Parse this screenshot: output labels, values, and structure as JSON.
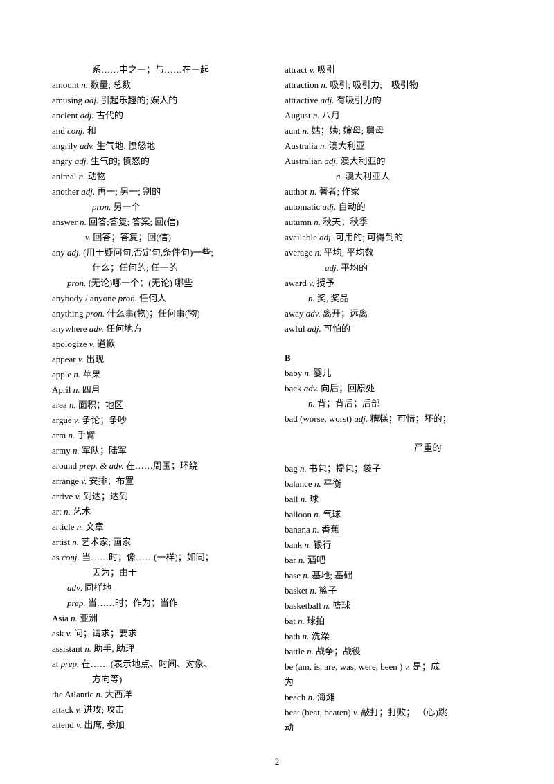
{
  "page_number": "2",
  "left_column": [
    {
      "text": "系……中之一；与……在一起",
      "indent": "indent-2"
    },
    {
      "word": "amount",
      "pos": "n.",
      "def": "数量; 总数"
    },
    {
      "word": "amusing",
      "pos": "adj.",
      "def": "引起乐趣的; 娱人的"
    },
    {
      "word": "ancient",
      "pos": "adj.",
      "def": "古代的"
    },
    {
      "word": "and",
      "pos": "conj.",
      "def": "和"
    },
    {
      "word": "angrily",
      "pos": "adv.",
      "def": "生气地; 愤怒地"
    },
    {
      "word": "angry",
      "pos": "adj.",
      "def": "生气的; 愤怒的"
    },
    {
      "word": "animal",
      "pos": "n.",
      "def": "动物"
    },
    {
      "word": "another",
      "pos": "adj.",
      "def": "再一; 另一; 别的"
    },
    {
      "pos": "pron.",
      "def": "另一个",
      "indent": "indent-2"
    },
    {
      "word": "answer",
      "pos": "n.",
      "def": "回答;答复; 答案; 回(信)"
    },
    {
      "pos": "v.",
      "def": "回答；答复；回(信)",
      "indent": "sub-line"
    },
    {
      "word": "any",
      "pos": "adj.",
      "def": "(用于疑问句,否定句,条件句)一些;"
    },
    {
      "text": "什么；任何的; 任一的",
      "indent": "indent-2"
    },
    {
      "pos": "pron.",
      "def": "(无论)哪一个；(无论) 哪些",
      "indent": "sub-line-3"
    },
    {
      "word": "anybody / anyone ",
      "pos": "pron.",
      "def": "任何人"
    },
    {
      "word": "anything",
      "pos": "pron.",
      "def": "什么事(物)；任何事(物)"
    },
    {
      "word": "anywhere",
      "pos": "adv.",
      "def": "任何地方"
    },
    {
      "word": "apologize",
      "pos": "v.",
      "def": "道歉"
    },
    {
      "word": "appear",
      "pos": "v.",
      "def": "出现"
    },
    {
      "word": "apple",
      "pos": "n.",
      "def": "苹果"
    },
    {
      "word": "April",
      "pos": "n.",
      "def": "四月"
    },
    {
      "word": "area",
      "pos": "n.",
      "def": "面积；地区"
    },
    {
      "word": "argue",
      "pos": "v.",
      "def": "争论；争吵"
    },
    {
      "word": "arm",
      "pos": "n.",
      "def": "手臂"
    },
    {
      "word": "army",
      "pos": "n.",
      "def": "军队；陆军"
    },
    {
      "word": "around",
      "pos": "prep. & adv.",
      "def": "在……周围；环绕"
    },
    {
      "word": "arrange",
      "pos": "v.",
      "def": "安排；布置"
    },
    {
      "word": "arrive",
      "pos": "v.",
      "def": "到达；达到"
    },
    {
      "word": "art",
      "pos": "n.",
      "def": "艺术"
    },
    {
      "word": "article",
      "pos": "n.",
      "def": "文章"
    },
    {
      "word": "artist",
      "pos": "n.",
      "def": "艺术家; 画家"
    },
    {
      "word": "as",
      "pos": "conj.",
      "def": "当……时；像……(一样)；如同；"
    },
    {
      "text": "因为；由于",
      "indent": "indent-2"
    },
    {
      "pos": "adv",
      "def": "同样地",
      "indent": "sub-line-3",
      "suffix": "."
    },
    {
      "pos": "prep.",
      "def": "当……时；作为；当作",
      "indent": "sub-line-3"
    },
    {
      "word": "Asia",
      "pos": "n.",
      "def": "亚洲"
    },
    {
      "word": "ask",
      "pos": "v.",
      "def": "问；请求；要求"
    },
    {
      "word": "assistant  ",
      "pos": "n.",
      "def": "助手, 助理"
    },
    {
      "word": "at",
      "pos": "prep.",
      "def": "在…… (表示地点、时间、对象、"
    },
    {
      "text": "方向等)",
      "indent": "indent-2"
    },
    {
      "word": "the Atlantic",
      "pos": "n.",
      "def": "大西洋"
    },
    {
      "word": "attack",
      "pos": "v.",
      "def": "进攻; 攻击"
    },
    {
      "word": "attend",
      "pos": "v.",
      "def": "出席,  参加"
    }
  ],
  "right_column": [
    {
      "word": "attract",
      "pos": "v.",
      "def": "吸引"
    },
    {
      "word": "attraction",
      "pos": "n.",
      "def": "吸引; 吸引力;　吸引物"
    },
    {
      "word": "attractive",
      "pos": "adj.",
      "def": "有吸引力的"
    },
    {
      "word": "August",
      "pos": "n.",
      "def": "八月"
    },
    {
      "word": "aunt",
      "pos": "n.",
      "def": "姑；姨; 婶母; 舅母"
    },
    {
      "word": "Australia",
      "pos": "n.",
      "def": "澳大利亚"
    },
    {
      "word": "Australian",
      "pos": "adj.",
      "def": "澳大利亚的"
    },
    {
      "pos": "n.",
      "def": "澳大利亚人",
      "indent": "indent-3"
    },
    {
      "word": "author",
      "pos": "n.",
      "def": "著者; 作家"
    },
    {
      "word": "automatic",
      "pos": "adj.",
      "def": "自动的"
    },
    {
      "word": "autumn",
      "pos": "n.",
      "def": "秋天；秋季"
    },
    {
      "word": "available",
      "pos": "adj.",
      "def": "可用的; 可得到的"
    },
    {
      "word": "average  ",
      "pos": "n.",
      "def": "平均; 平均数"
    },
    {
      "pos": "adj.",
      "def": "平均的",
      "indent": "indent-2"
    },
    {
      "word": "award",
      "pos": "v.",
      "def": "授予"
    },
    {
      "pos": "n.",
      "def": "奖, 奖品",
      "indent": "indent-1"
    },
    {
      "word": "away",
      "pos": "adv.",
      "def": "离开；远离"
    },
    {
      "word": "awful",
      "pos": "adj.",
      "def": "可怕的"
    },
    {
      "section": "B"
    },
    {
      "word": "baby",
      "pos": "n.",
      "def": "婴儿"
    },
    {
      "word": "back",
      "pos": "adv.",
      "def": "向后；回原处"
    },
    {
      "pos": "n.",
      "def": "背；背后；后部",
      "indent": "indent-1"
    },
    {
      "word": "bad (worse, worst)",
      "pos": "adj.",
      "def": "糟糕；可惜；坏的；"
    },
    {
      "spacer": true,
      "text": "严重的"
    },
    {
      "word": "bag",
      "pos": "n.",
      "def": "书包；提包；袋子"
    },
    {
      "word": "balance",
      "pos": "n.",
      "def": "平衡"
    },
    {
      "word": "ball",
      "pos": "n.",
      "def": "球"
    },
    {
      "word": "balloon",
      "pos": "n.",
      "def": "气球"
    },
    {
      "word": "banana",
      "pos": "n.",
      "def": "香蕉"
    },
    {
      "word": "bank",
      "pos": "n.",
      "def": "银行"
    },
    {
      "word": "bar",
      "pos": "n.",
      "def": "酒吧"
    },
    {
      "word": "base",
      "pos": "n.",
      "def": "基地; 基础"
    },
    {
      "word": "basket",
      "pos": "n.",
      "def": "篮子"
    },
    {
      "word": "basketball",
      "pos": "n.",
      "def": "篮球"
    },
    {
      "word": "bat",
      "pos": "n.",
      "def": "球拍"
    },
    {
      "word": "bath",
      "pos": "n.",
      "def": "洗澡"
    },
    {
      "word": "battle",
      "pos": "n.",
      "def": "战争；战役"
    },
    {
      "word": "be (am, is, are, was, were, been )",
      "pos": "v.",
      "def": "是；成"
    },
    {
      "text": "为"
    },
    {
      "word": "beach",
      "pos": "n.",
      "def": "海滩"
    },
    {
      "word": "beat (beat, beaten)",
      "pos": "v.",
      "def": "敲打；打败； （心)跳"
    },
    {
      "text": "动"
    }
  ]
}
